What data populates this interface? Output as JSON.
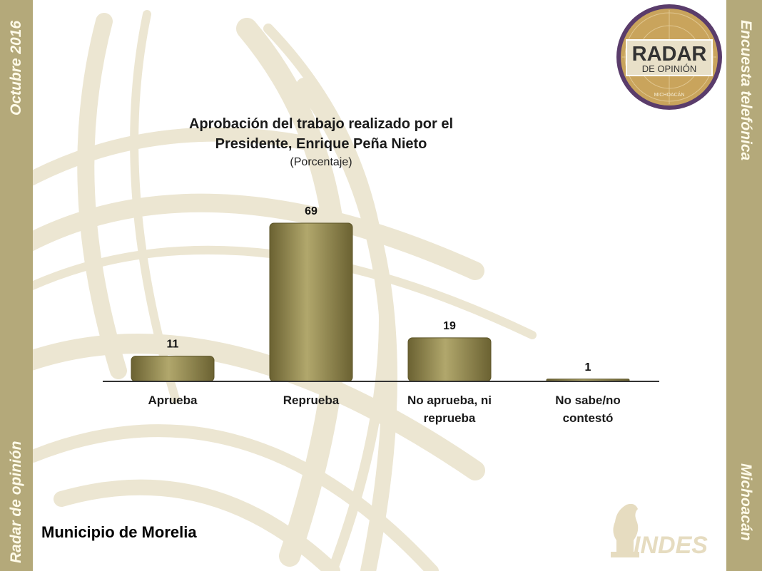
{
  "side": {
    "left_top": "Octubre 2016",
    "left_bottom": "Radar de opinión",
    "right_top": "Encuesta telefónica",
    "right_bottom": "Michoacán"
  },
  "logo": {
    "line1": "RADAR",
    "line2": "DE OPINIÓN",
    "line3": "MICHOACÁN"
  },
  "indes_logo": {
    "text": "INDES"
  },
  "footer": {
    "municipality": "Municipio de Morelia"
  },
  "colors": {
    "band": "#b4a97a",
    "bar": "#8f8550",
    "logo_gold": "#c9a45c"
  },
  "chart_data": {
    "type": "bar",
    "title_line1": "Aprobación del trabajo realizado por el",
    "title_line2": "Presidente, Enrique Peña Nieto",
    "subtitle": "(Porcentaje)",
    "categories": [
      "Aprueba",
      "Reprueba",
      "No aprueba, ni reprueba",
      "No sabe/no contestó"
    ],
    "category_lines": [
      [
        "Aprueba"
      ],
      [
        "Reprueba"
      ],
      [
        "No aprueba, ni",
        "reprueba"
      ],
      [
        "No sabe/no",
        "contestó"
      ]
    ],
    "values": [
      11,
      69,
      19,
      1
    ],
    "ylim": [
      0,
      69
    ],
    "grid": false,
    "legend": "none"
  }
}
